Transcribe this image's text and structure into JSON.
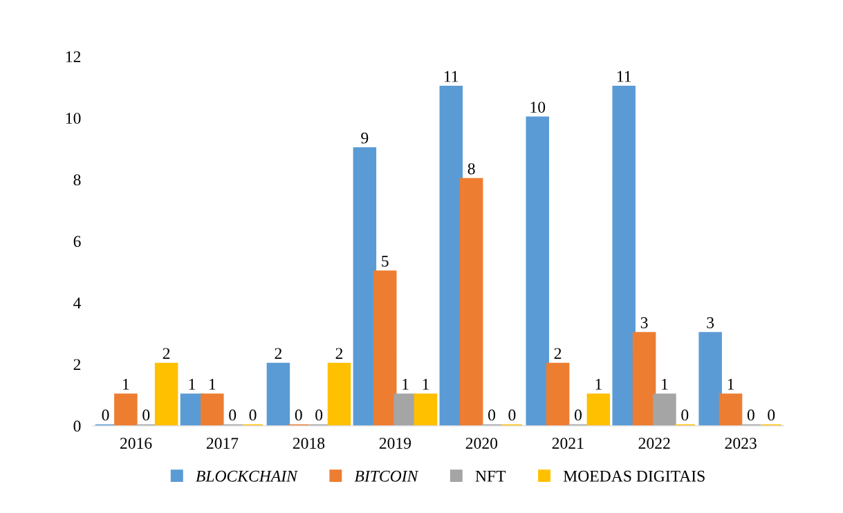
{
  "chart_data": {
    "type": "bar",
    "categories": [
      "2016",
      "2017",
      "2018",
      "2019",
      "2020",
      "2021",
      "2022",
      "2023"
    ],
    "series": [
      {
        "name": "BLOCKCHAIN",
        "color": "#5b9bd5",
        "values": [
          0,
          1,
          2,
          9,
          11,
          10,
          11,
          3
        ]
      },
      {
        "name": "BITCOIN",
        "color": "#ed7d31",
        "values": [
          1,
          1,
          0,
          5,
          8,
          2,
          3,
          1
        ]
      },
      {
        "name": "NFT",
        "color": "#a5a5a5",
        "values": [
          0,
          0,
          0,
          1,
          0,
          0,
          1,
          0
        ]
      },
      {
        "name": "MOEDAS DIGITAIS",
        "color": "#ffc000",
        "values": [
          2,
          0,
          2,
          1,
          0,
          1,
          0,
          0
        ]
      }
    ],
    "ylim": [
      0,
      12
    ],
    "yticks": [
      0,
      2,
      4,
      6,
      8,
      10,
      12
    ],
    "data_labels": true,
    "grid": false,
    "legend": "bottom"
  }
}
